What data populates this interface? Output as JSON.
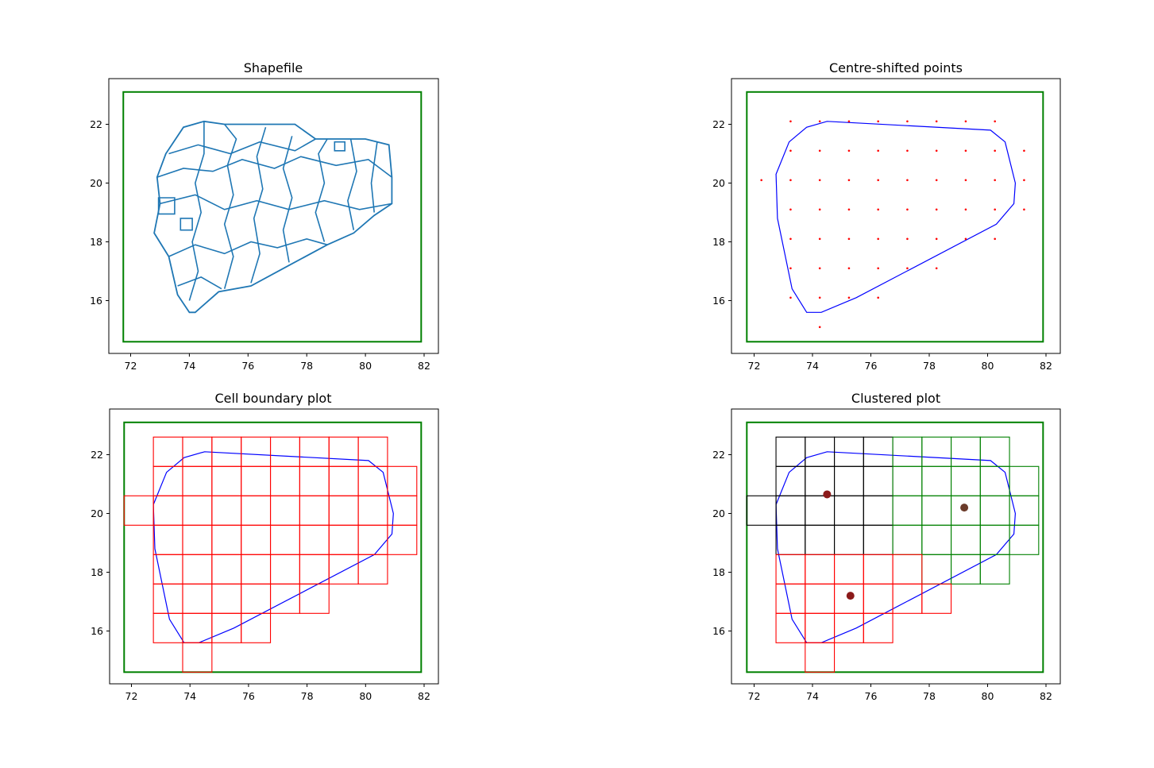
{
  "colors": {
    "frame": "#008000",
    "shape": "#1f77b4",
    "hull": "#0000ff",
    "points": "#ff0000",
    "cells": "#ff0000",
    "cluster_black": "#000000",
    "cluster_green": "#008000",
    "cluster_red": "#ff0000",
    "centroid_dark": "#8b1a1a",
    "centroid_olive": "#6b3b2a"
  },
  "chart_data": [
    {
      "type": "scatter",
      "title": "Shapefile",
      "xlabel": "",
      "ylabel": "",
      "xlim": [
        71.2,
        82.5
      ],
      "ylim": [
        14.4,
        23.6
      ],
      "xticks": [
        "72",
        "74",
        "76",
        "78",
        "80",
        "82"
      ],
      "yticks": [
        "16",
        "18",
        "20",
        "22"
      ],
      "frame": [
        [
          71.75,
          14.6
        ],
        [
          81.9,
          23.1
        ]
      ],
      "outline": [
        [
          74.0,
          15.6
        ],
        [
          73.6,
          16.2
        ],
        [
          73.3,
          17.5
        ],
        [
          72.8,
          18.3
        ],
        [
          73.0,
          19.3
        ],
        [
          72.9,
          20.2
        ],
        [
          73.2,
          21.0
        ],
        [
          73.8,
          21.9
        ],
        [
          74.5,
          22.1
        ],
        [
          75.2,
          22.0
        ],
        [
          77.6,
          22.0
        ],
        [
          78.3,
          21.5
        ],
        [
          80.0,
          21.5
        ],
        [
          80.8,
          21.3
        ],
        [
          80.9,
          20.2
        ],
        [
          80.9,
          19.3
        ],
        [
          80.3,
          18.9
        ],
        [
          79.6,
          18.3
        ],
        [
          78.7,
          17.9
        ],
        [
          77.4,
          17.2
        ],
        [
          76.1,
          16.5
        ],
        [
          75.0,
          16.3
        ],
        [
          74.2,
          15.6
        ]
      ],
      "districts": "approximately 35 district boundaries"
    },
    {
      "type": "scatter",
      "title": "Centre-shifted points",
      "xlabel": "",
      "ylabel": "",
      "xlim": [
        71.2,
        82.5
      ],
      "ylim": [
        14.4,
        23.6
      ],
      "xticks": [
        "72",
        "74",
        "76",
        "78",
        "80",
        "82"
      ],
      "yticks": [
        "16",
        "18",
        "20",
        "22"
      ],
      "hull": [
        [
          73.8,
          15.6
        ],
        [
          74.3,
          15.6
        ],
        [
          75.5,
          16.1
        ],
        [
          80.3,
          18.6
        ],
        [
          80.9,
          19.3
        ],
        [
          80.95,
          20.0
        ],
        [
          80.6,
          21.4
        ],
        [
          80.1,
          21.8
        ],
        [
          74.5,
          22.1
        ],
        [
          73.8,
          21.9
        ],
        [
          73.2,
          21.4
        ],
        [
          72.75,
          20.3
        ],
        [
          72.8,
          18.8
        ],
        [
          73.3,
          16.4
        ]
      ],
      "points": [
        [
          73.25,
          22.1
        ],
        [
          74.25,
          22.1
        ],
        [
          75.25,
          22.1
        ],
        [
          76.25,
          22.1
        ],
        [
          77.25,
          22.1
        ],
        [
          78.25,
          22.1
        ],
        [
          79.25,
          22.1
        ],
        [
          80.25,
          22.1
        ],
        [
          73.25,
          21.1
        ],
        [
          74.25,
          21.1
        ],
        [
          75.25,
          21.1
        ],
        [
          76.25,
          21.1
        ],
        [
          77.25,
          21.1
        ],
        [
          78.25,
          21.1
        ],
        [
          79.25,
          21.1
        ],
        [
          80.25,
          21.1
        ],
        [
          81.25,
          21.1
        ],
        [
          72.25,
          20.1
        ],
        [
          73.25,
          20.1
        ],
        [
          74.25,
          20.1
        ],
        [
          75.25,
          20.1
        ],
        [
          76.25,
          20.1
        ],
        [
          77.25,
          20.1
        ],
        [
          78.25,
          20.1
        ],
        [
          79.25,
          20.1
        ],
        [
          80.25,
          20.1
        ],
        [
          81.25,
          20.1
        ],
        [
          73.25,
          19.1
        ],
        [
          74.25,
          19.1
        ],
        [
          75.25,
          19.1
        ],
        [
          76.25,
          19.1
        ],
        [
          77.25,
          19.1
        ],
        [
          78.25,
          19.1
        ],
        [
          79.25,
          19.1
        ],
        [
          80.25,
          19.1
        ],
        [
          81.25,
          19.1
        ],
        [
          73.25,
          18.1
        ],
        [
          74.25,
          18.1
        ],
        [
          75.25,
          18.1
        ],
        [
          76.25,
          18.1
        ],
        [
          77.25,
          18.1
        ],
        [
          78.25,
          18.1
        ],
        [
          79.25,
          18.1
        ],
        [
          80.25,
          18.1
        ],
        [
          73.25,
          17.1
        ],
        [
          74.25,
          17.1
        ],
        [
          75.25,
          17.1
        ],
        [
          76.25,
          17.1
        ],
        [
          77.25,
          17.1
        ],
        [
          78.25,
          17.1
        ],
        [
          73.25,
          16.1
        ],
        [
          74.25,
          16.1
        ],
        [
          75.25,
          16.1
        ],
        [
          76.25,
          16.1
        ],
        [
          74.25,
          15.1
        ]
      ]
    },
    {
      "type": "scatter",
      "title": "Cell boundary plot",
      "xlabel": "",
      "ylabel": "",
      "xlim": [
        71.2,
        82.5
      ],
      "ylim": [
        14.4,
        23.6
      ],
      "xticks": [
        "72",
        "74",
        "76",
        "78",
        "80",
        "82"
      ],
      "yticks": [
        "16",
        "18",
        "20",
        "22"
      ],
      "cells": [
        [
          73.25,
          22.1
        ],
        [
          74.25,
          22.1
        ],
        [
          75.25,
          22.1
        ],
        [
          76.25,
          22.1
        ],
        [
          77.25,
          22.1
        ],
        [
          78.25,
          22.1
        ],
        [
          79.25,
          22.1
        ],
        [
          80.25,
          22.1
        ],
        [
          73.25,
          21.1
        ],
        [
          74.25,
          21.1
        ],
        [
          75.25,
          21.1
        ],
        [
          76.25,
          21.1
        ],
        [
          77.25,
          21.1
        ],
        [
          78.25,
          21.1
        ],
        [
          79.25,
          21.1
        ],
        [
          80.25,
          21.1
        ],
        [
          81.25,
          21.1
        ],
        [
          72.25,
          20.1
        ],
        [
          73.25,
          20.1
        ],
        [
          74.25,
          20.1
        ],
        [
          75.25,
          20.1
        ],
        [
          76.25,
          20.1
        ],
        [
          77.25,
          20.1
        ],
        [
          78.25,
          20.1
        ],
        [
          79.25,
          20.1
        ],
        [
          80.25,
          20.1
        ],
        [
          81.25,
          20.1
        ],
        [
          73.25,
          19.1
        ],
        [
          74.25,
          19.1
        ],
        [
          75.25,
          19.1
        ],
        [
          76.25,
          19.1
        ],
        [
          77.25,
          19.1
        ],
        [
          78.25,
          19.1
        ],
        [
          79.25,
          19.1
        ],
        [
          80.25,
          19.1
        ],
        [
          81.25,
          19.1
        ],
        [
          73.25,
          18.1
        ],
        [
          74.25,
          18.1
        ],
        [
          75.25,
          18.1
        ],
        [
          76.25,
          18.1
        ],
        [
          77.25,
          18.1
        ],
        [
          78.25,
          18.1
        ],
        [
          79.25,
          18.1
        ],
        [
          80.25,
          18.1
        ],
        [
          73.25,
          17.1
        ],
        [
          74.25,
          17.1
        ],
        [
          75.25,
          17.1
        ],
        [
          76.25,
          17.1
        ],
        [
          77.25,
          17.1
        ],
        [
          78.25,
          17.1
        ],
        [
          73.25,
          16.1
        ],
        [
          74.25,
          16.1
        ],
        [
          75.25,
          16.1
        ],
        [
          76.25,
          16.1
        ],
        [
          74.25,
          15.1
        ]
      ],
      "cell_size": [
        1.0,
        1.0
      ]
    },
    {
      "type": "scatter",
      "title": "Clustered plot",
      "xlabel": "",
      "ylabel": "",
      "xlim": [
        71.2,
        82.5
      ],
      "ylim": [
        14.4,
        23.6
      ],
      "xticks": [
        "72",
        "74",
        "76",
        "78",
        "80",
        "82"
      ],
      "yticks": [
        "16",
        "18",
        "20",
        "22"
      ],
      "clusters": [
        {
          "cells": [
            [
              73.25,
              22.1
            ],
            [
              74.25,
              22.1
            ],
            [
              75.25,
              22.1
            ],
            [
              76.25,
              22.1
            ],
            [
              73.25,
              21.1
            ],
            [
              74.25,
              21.1
            ],
            [
              75.25,
              21.1
            ],
            [
              76.25,
              21.1
            ],
            [
              72.25,
              20.1
            ],
            [
              73.25,
              20.1
            ],
            [
              74.25,
              20.1
            ],
            [
              75.25,
              20.1
            ],
            [
              76.25,
              20.1
            ],
            [
              73.25,
              19.1
            ],
            [
              74.25,
              19.1
            ],
            [
              75.25,
              19.1
            ],
            [
              76.25,
              19.1
            ]
          ],
          "centroid": [
            74.5,
            20.65
          ]
        },
        {
          "cells": [
            [
              77.25,
              22.1
            ],
            [
              78.25,
              22.1
            ],
            [
              79.25,
              22.1
            ],
            [
              80.25,
              22.1
            ],
            [
              77.25,
              21.1
            ],
            [
              78.25,
              21.1
            ],
            [
              79.25,
              21.1
            ],
            [
              80.25,
              21.1
            ],
            [
              81.25,
              21.1
            ],
            [
              77.25,
              20.1
            ],
            [
              78.25,
              20.1
            ],
            [
              79.25,
              20.1
            ],
            [
              80.25,
              20.1
            ],
            [
              81.25,
              20.1
            ],
            [
              77.25,
              19.1
            ],
            [
              78.25,
              19.1
            ],
            [
              79.25,
              19.1
            ],
            [
              80.25,
              19.1
            ],
            [
              81.25,
              19.1
            ],
            [
              78.25,
              18.1
            ],
            [
              79.25,
              18.1
            ],
            [
              80.25,
              18.1
            ]
          ],
          "centroid": [
            79.2,
            20.2
          ]
        },
        {
          "cells": [
            [
              73.25,
              18.1
            ],
            [
              74.25,
              18.1
            ],
            [
              75.25,
              18.1
            ],
            [
              76.25,
              18.1
            ],
            [
              77.25,
              18.1
            ],
            [
              73.25,
              17.1
            ],
            [
              74.25,
              17.1
            ],
            [
              75.25,
              17.1
            ],
            [
              76.25,
              17.1
            ],
            [
              77.25,
              17.1
            ],
            [
              78.25,
              17.1
            ],
            [
              73.25,
              16.1
            ],
            [
              74.25,
              16.1
            ],
            [
              75.25,
              16.1
            ],
            [
              76.25,
              16.1
            ],
            [
              74.25,
              15.1
            ]
          ],
          "centroid": [
            75.3,
            17.2
          ]
        }
      ]
    }
  ]
}
